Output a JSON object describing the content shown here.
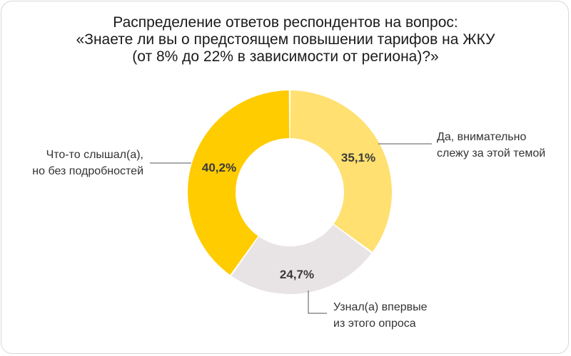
{
  "chart_data": {
    "type": "pie",
    "variant": "donut",
    "title_lines": [
      "Распределение ответов респондентов на вопрос:",
      "«Знаете ли вы о предстоящем повышении тарифов на ЖКУ",
      "(от 8% до 22% в зависимости от региона)?»"
    ],
    "slices": [
      {
        "label_lines": [
          "Да, внимательно",
          "слежу за этой темой"
        ],
        "value": 35.1,
        "value_label": "35,1%",
        "color": "#FFE070"
      },
      {
        "label_lines": [
          "Узнал(а) впервые",
          "из этого опроса"
        ],
        "value": 24.7,
        "value_label": "24,7%",
        "color": "#E8E4E6"
      },
      {
        "label_lines": [
          "Что-то слышал(а),",
          "но без подробностей"
        ],
        "value": 40.2,
        "value_label": "40,2%",
        "color": "#FFCC00"
      }
    ],
    "legend": "callouts"
  },
  "colors": {
    "background": "#FFFFFF",
    "leader_line": "#555555",
    "text": "#333333"
  }
}
